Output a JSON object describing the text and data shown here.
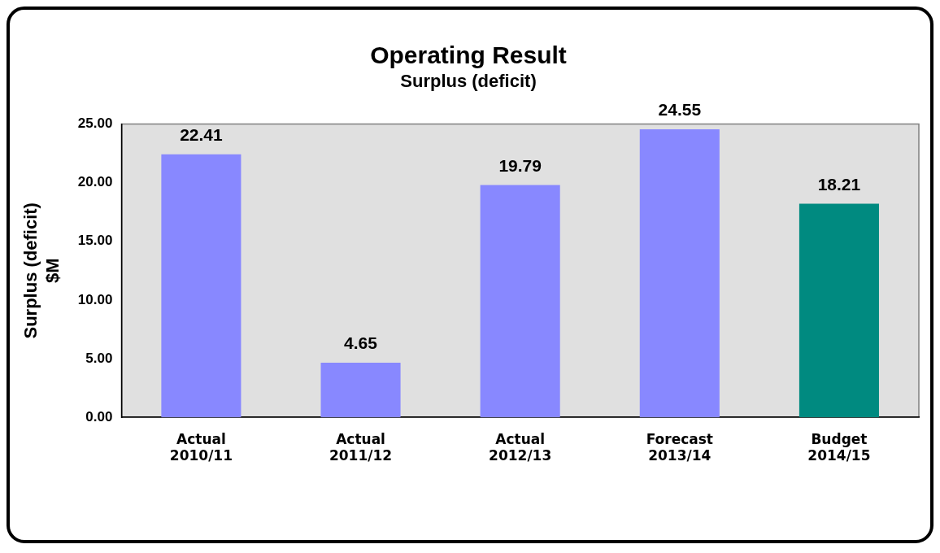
{
  "chart_data": {
    "type": "bar",
    "title": "Operating Result",
    "subtitle": "Surplus (deficit)",
    "ylabel": "Surplus (deficit)\n$M",
    "categories": [
      "Actual\n2010/11",
      "Actual\n2011/12",
      "Actual\n2012/13",
      "Forecast\n2013/14",
      "Budget\n2014/15"
    ],
    "values": [
      22.41,
      4.65,
      19.79,
      24.55,
      18.21
    ],
    "colors": [
      "#8888ff",
      "#8888ff",
      "#8888ff",
      "#8888ff",
      "#008a80"
    ],
    "value_labels": [
      "22.41",
      "4.65",
      "19.79",
      "24.55",
      "18.21"
    ],
    "ylim": [
      0,
      25
    ],
    "yticks": [
      {
        "value": 0,
        "label": "0.00"
      },
      {
        "value": 5,
        "label": "5.00"
      },
      {
        "value": 10,
        "label": "10.00"
      },
      {
        "value": 15,
        "label": "15.00"
      },
      {
        "value": 20,
        "label": "20.00"
      },
      {
        "value": 25,
        "label": "25.00"
      }
    ],
    "grid": false,
    "legend": false
  }
}
